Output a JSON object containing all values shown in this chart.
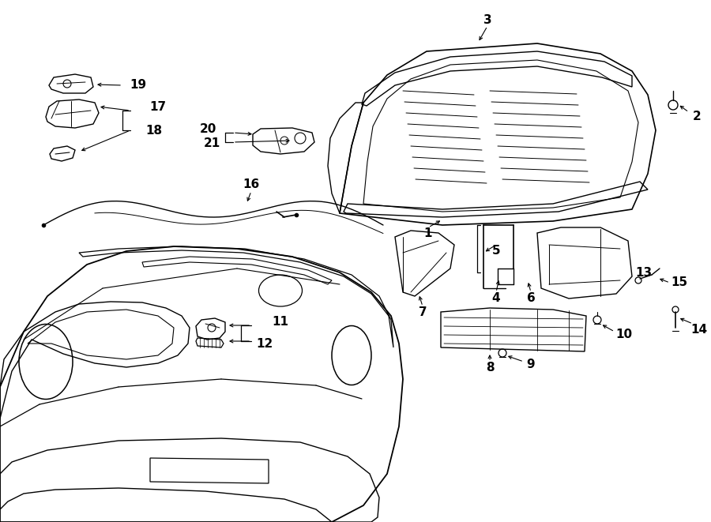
{
  "background_color": "#ffffff",
  "line_color": "#000000",
  "figsize": [
    9.0,
    6.61
  ],
  "dpi": 100
}
